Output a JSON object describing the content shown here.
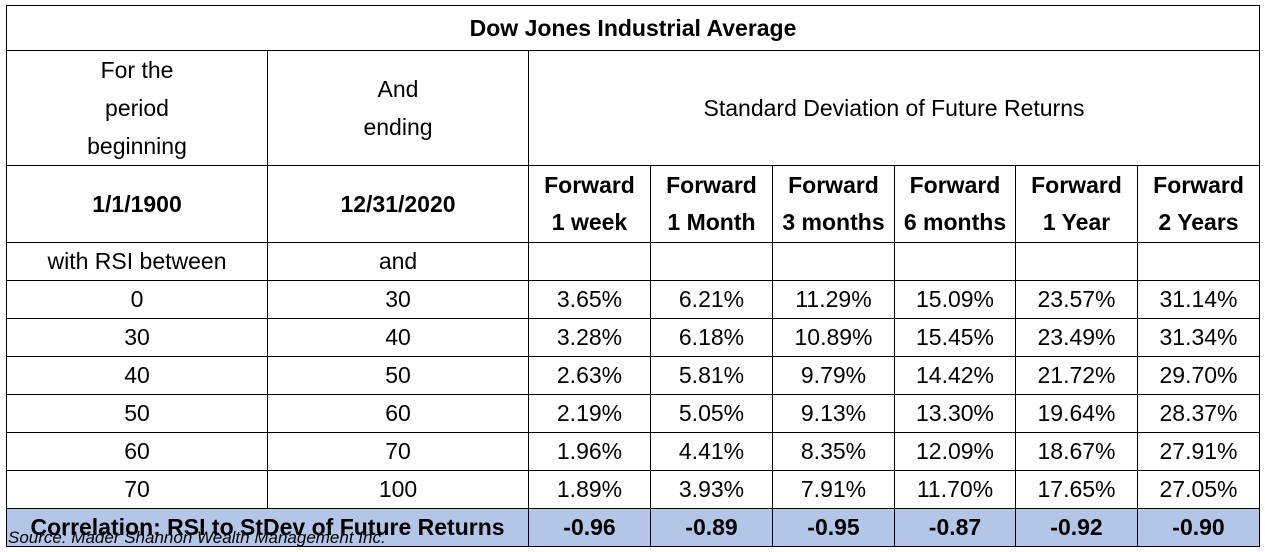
{
  "title": "Dow Jones Industrial Average",
  "header": {
    "period_begin_label": "For the period beginning",
    "period_end_label": "And ending",
    "metric_label": "Standard Deviation of Future Returns",
    "start_date": "1/1/1900",
    "end_date": "12/31/2020",
    "forward_labels": [
      {
        "line1": "Forward",
        "line2": "1 week"
      },
      {
        "line1": "Forward",
        "line2": "1 Month"
      },
      {
        "line1": "Forward",
        "line2": "3 months"
      },
      {
        "line1": "Forward",
        "line2": "6 months"
      },
      {
        "line1": "Forward",
        "line2": "1 Year"
      },
      {
        "line1": "Forward",
        "line2": "2 Years"
      }
    ],
    "rsi_between_label": "with RSI between",
    "and_label": "and"
  },
  "rows": [
    {
      "low": "0",
      "high": "30",
      "values": [
        "3.65%",
        "6.21%",
        "11.29%",
        "15.09%",
        "23.57%",
        "31.14%"
      ]
    },
    {
      "low": "30",
      "high": "40",
      "values": [
        "3.28%",
        "6.18%",
        "10.89%",
        "15.45%",
        "23.49%",
        "31.34%"
      ]
    },
    {
      "low": "40",
      "high": "50",
      "values": [
        "2.63%",
        "5.81%",
        "9.79%",
        "14.42%",
        "21.72%",
        "29.70%"
      ]
    },
    {
      "low": "50",
      "high": "60",
      "values": [
        "2.19%",
        "5.05%",
        "9.13%",
        "13.30%",
        "19.64%",
        "28.37%"
      ]
    },
    {
      "low": "60",
      "high": "70",
      "values": [
        "1.96%",
        "4.41%",
        "8.35%",
        "12.09%",
        "18.67%",
        "27.91%"
      ]
    },
    {
      "low": "70",
      "high": "100",
      "values": [
        "1.89%",
        "3.93%",
        "7.91%",
        "11.70%",
        "17.65%",
        "27.05%"
      ]
    }
  ],
  "correlation": {
    "label": "Correlation: RSI to StDev of Future Returns",
    "values": [
      "-0.96",
      "-0.89",
      "-0.95",
      "-0.87",
      "-0.92",
      "-0.90"
    ]
  },
  "source": "Source: Mader Shannon Wealth Management Inc.",
  "colors": {
    "correlation_row_bg": "#b4c6e7",
    "border": "#000000"
  }
}
